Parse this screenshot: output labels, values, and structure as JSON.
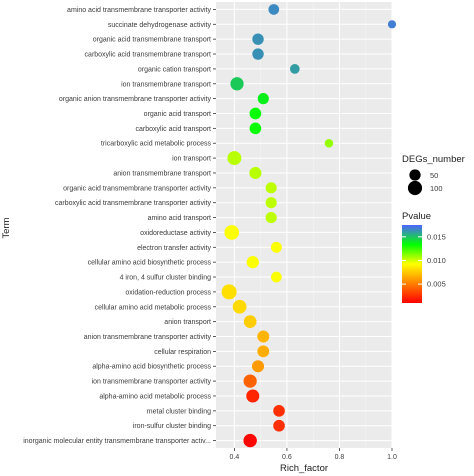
{
  "chart_data": {
    "type": "scatter",
    "title": "",
    "xlabel": "Rich_factor",
    "ylabel": "Term",
    "xlim": [
      0.33,
      1.0
    ],
    "x_ticks": [
      "0.4",
      "0.6",
      "0.8",
      "1.0"
    ],
    "x_tick_values": [
      0.4,
      0.6,
      0.8,
      1.0
    ],
    "grid": true,
    "legend_placement": "right",
    "size_legend": {
      "title": "DEGs_number",
      "labels": [
        "50",
        "100"
      ],
      "values": [
        50,
        100
      ]
    },
    "color_legend": {
      "title": "Pvalue",
      "labels": [
        "0.015",
        "0.010",
        "0.005"
      ],
      "values": [
        0.015,
        0.01,
        0.005
      ],
      "range": [
        0.001,
        0.0175
      ],
      "colors": [
        "#ff0000",
        "#ff8000",
        "#ffff00",
        "#00ff00",
        "#4f64ff"
      ]
    },
    "points": [
      {
        "term": "amino acid transmembrane transporter activity",
        "x": 0.55,
        "degs": 42,
        "pvalue": 0.0165
      },
      {
        "term": "succinate dehydrogenase activity",
        "x": 1.0,
        "degs": 15,
        "pvalue": 0.0168
      },
      {
        "term": "organic acid transmembrane transport",
        "x": 0.49,
        "degs": 52,
        "pvalue": 0.0163
      },
      {
        "term": "carboxylic acid transmembrane transport",
        "x": 0.49,
        "degs": 52,
        "pvalue": 0.0163
      },
      {
        "term": "organic cation transport",
        "x": 0.63,
        "degs": 30,
        "pvalue": 0.016
      },
      {
        "term": "ion transmembrane transport",
        "x": 0.41,
        "degs": 82,
        "pvalue": 0.0148
      },
      {
        "term": "organic anion transmembrane transporter activity",
        "x": 0.51,
        "degs": 48,
        "pvalue": 0.0138
      },
      {
        "term": "organic acid transport",
        "x": 0.48,
        "degs": 55,
        "pvalue": 0.0133
      },
      {
        "term": "carboxylic acid transport",
        "x": 0.48,
        "degs": 55,
        "pvalue": 0.0133
      },
      {
        "term": "tricarboxylic acid metabolic process",
        "x": 0.76,
        "degs": 18,
        "pvalue": 0.011
      },
      {
        "term": "ion transport",
        "x": 0.4,
        "degs": 95,
        "pvalue": 0.0104
      },
      {
        "term": "anion transmembrane transport",
        "x": 0.48,
        "degs": 62,
        "pvalue": 0.0104
      },
      {
        "term": "organic acid transmembrane transporter activity",
        "x": 0.54,
        "degs": 48,
        "pvalue": 0.0103
      },
      {
        "term": "carboxylic acid transmembrane transporter activity",
        "x": 0.54,
        "degs": 48,
        "pvalue": 0.0103
      },
      {
        "term": "amino acid transport",
        "x": 0.54,
        "degs": 48,
        "pvalue": 0.0103
      },
      {
        "term": "oxidoreductase activity",
        "x": 0.39,
        "degs": 110,
        "pvalue": 0.0093
      },
      {
        "term": "electron transfer activity",
        "x": 0.56,
        "degs": 45,
        "pvalue": 0.0093
      },
      {
        "term": "cellular amino acid biosynthetic process",
        "x": 0.47,
        "degs": 65,
        "pvalue": 0.0093
      },
      {
        "term": "4 iron, 4 sulfur cluster binding",
        "x": 0.56,
        "degs": 42,
        "pvalue": 0.0093
      },
      {
        "term": "oxidation-reduction process",
        "x": 0.38,
        "degs": 118,
        "pvalue": 0.0082
      },
      {
        "term": "cellular amino acid metabolic process",
        "x": 0.42,
        "degs": 92,
        "pvalue": 0.008
      },
      {
        "term": "anion transport",
        "x": 0.46,
        "degs": 72,
        "pvalue": 0.0076
      },
      {
        "term": "anion transmembrane transporter activity",
        "x": 0.51,
        "degs": 60,
        "pvalue": 0.0068
      },
      {
        "term": "cellular respiration",
        "x": 0.51,
        "degs": 58,
        "pvalue": 0.0066
      },
      {
        "term": "alpha-amino acid biosynthetic process",
        "x": 0.49,
        "degs": 62,
        "pvalue": 0.006
      },
      {
        "term": "ion transmembrane transporter activity",
        "x": 0.46,
        "degs": 82,
        "pvalue": 0.0042
      },
      {
        "term": "alpha-amino acid metabolic process",
        "x": 0.47,
        "degs": 78,
        "pvalue": 0.0022
      },
      {
        "term": "metal cluster binding",
        "x": 0.57,
        "degs": 55,
        "pvalue": 0.0025
      },
      {
        "term": "iron-sulfur cluster binding",
        "x": 0.57,
        "degs": 55,
        "pvalue": 0.0025
      },
      {
        "term": "inorganic molecular entity transmembrane transporter activ...",
        "x": 0.46,
        "degs": 85,
        "pvalue": 0.0012
      }
    ]
  }
}
